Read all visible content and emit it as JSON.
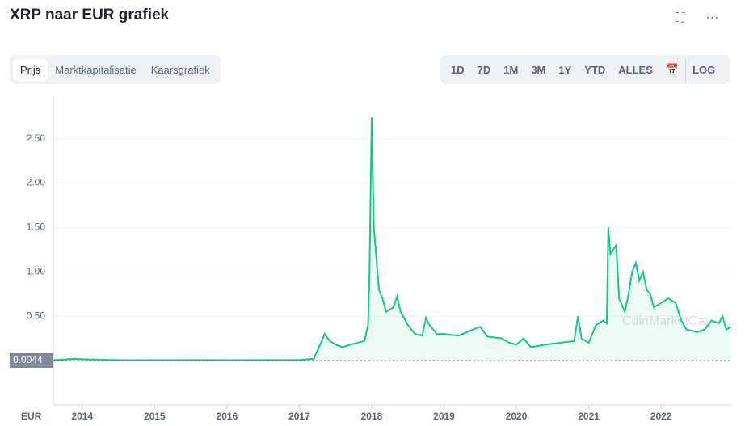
{
  "header": {
    "title": "XRP naar EUR grafiek"
  },
  "tabs": [
    "Prijs",
    "Marktkapitalisatie",
    "Kaarsgrafiek"
  ],
  "ranges": [
    "1D",
    "7D",
    "1M",
    "3M",
    "1Y",
    "YTD",
    "ALLES"
  ],
  "log_button": "LOG",
  "chart_data": {
    "type": "line",
    "y_label": "EUR",
    "start_label": "0.0044",
    "watermark": "CoinMarketCap",
    "xlim": [
      2013.6,
      2022.97
    ],
    "xticks": [
      2014,
      2015,
      2016,
      2017,
      2018,
      2019,
      2020,
      2021,
      2022
    ],
    "ylim": [
      0,
      2.88
    ],
    "yticks": [
      {
        "value": 0.5,
        "label": "0.50"
      },
      {
        "value": 1,
        "label": "1.00"
      },
      {
        "value": 1.5,
        "label": "1.50"
      },
      {
        "value": 2,
        "label": "2.00"
      },
      {
        "value": 2.5,
        "label": "2.50"
      }
    ],
    "grid": true,
    "x": [
      2013.6,
      2013.9,
      2014.0,
      2014.5,
      2015.0,
      2015.5,
      2016.0,
      2016.5,
      2017.0,
      2017.2,
      2017.3,
      2017.35,
      2017.42,
      2017.5,
      2017.6,
      2017.7,
      2017.8,
      2017.9,
      2017.95,
      2017.97,
      2018.0,
      2018.03,
      2018.06,
      2018.1,
      2018.15,
      2018.2,
      2018.3,
      2018.35,
      2018.4,
      2018.5,
      2018.6,
      2018.7,
      2018.75,
      2018.8,
      2018.9,
      2019.0,
      2019.2,
      2019.4,
      2019.5,
      2019.6,
      2019.8,
      2019.9,
      2020.0,
      2020.1,
      2020.2,
      2020.4,
      2020.6,
      2020.8,
      2020.85,
      2020.9,
      2021.0,
      2021.1,
      2021.2,
      2021.25,
      2021.27,
      2021.3,
      2021.38,
      2021.42,
      2021.5,
      2021.55,
      2021.6,
      2021.65,
      2021.7,
      2021.75,
      2021.8,
      2021.85,
      2021.9,
      2022.0,
      2022.1,
      2022.2,
      2022.28,
      2022.35,
      2022.5,
      2022.6,
      2022.7,
      2022.8,
      2022.85,
      2022.9,
      2022.97
    ],
    "series": [
      {
        "name": "Prijs",
        "color": "#16c784",
        "values": [
          0.005,
          0.02,
          0.015,
          0.005,
          0.005,
          0.006,
          0.005,
          0.006,
          0.006,
          0.02,
          0.2,
          0.3,
          0.22,
          0.18,
          0.15,
          0.18,
          0.2,
          0.22,
          0.4,
          1.0,
          2.74,
          1.5,
          1.2,
          0.8,
          0.7,
          0.55,
          0.6,
          0.72,
          0.55,
          0.4,
          0.3,
          0.28,
          0.48,
          0.4,
          0.3,
          0.3,
          0.28,
          0.35,
          0.38,
          0.27,
          0.25,
          0.2,
          0.18,
          0.25,
          0.15,
          0.18,
          0.2,
          0.22,
          0.5,
          0.25,
          0.2,
          0.4,
          0.45,
          0.42,
          1.5,
          1.2,
          1.3,
          0.7,
          0.55,
          0.75,
          1.0,
          1.1,
          0.9,
          1.0,
          0.8,
          0.75,
          0.6,
          0.65,
          0.7,
          0.65,
          0.45,
          0.35,
          0.32,
          0.35,
          0.45,
          0.42,
          0.5,
          0.35,
          0.38
        ]
      }
    ]
  }
}
